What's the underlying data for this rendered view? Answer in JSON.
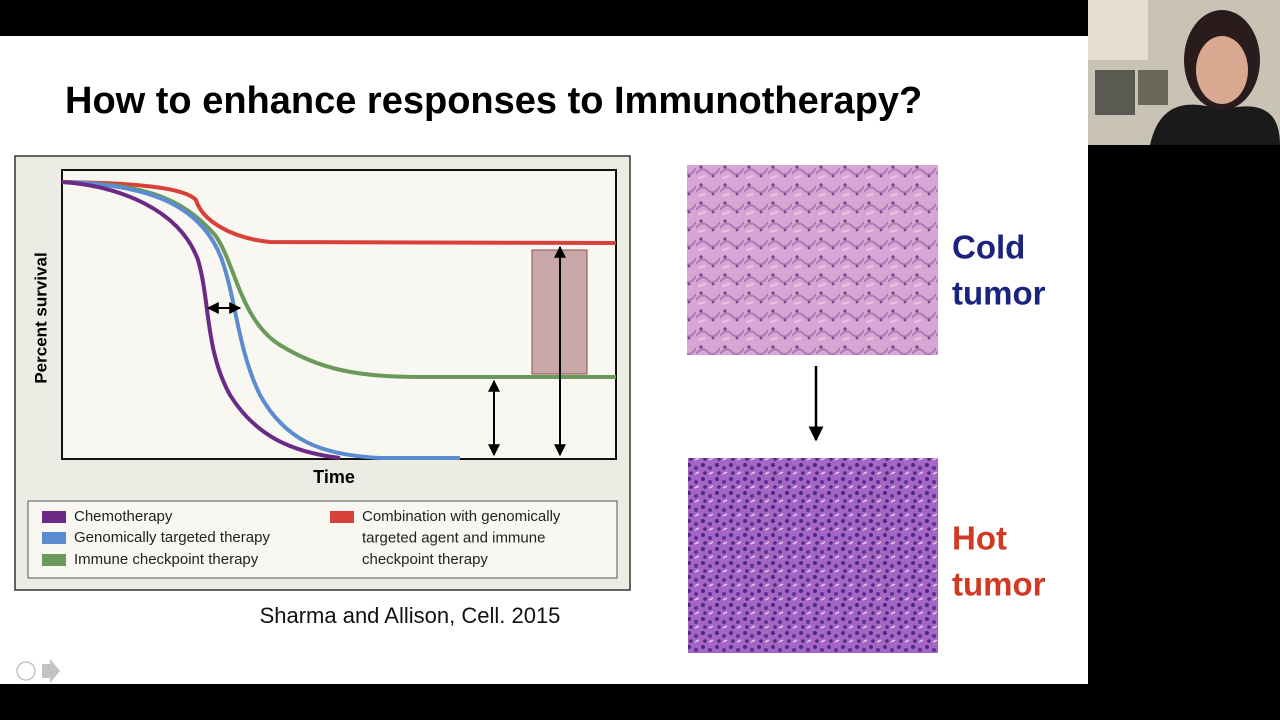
{
  "slide": {
    "title": "How to enhance responses to  Immunotherapy?",
    "figure": {
      "y_label": "Percent survival",
      "x_label": "Time",
      "legend": [
        {
          "lines": [
            "Chemotherapy"
          ],
          "color": "#6a2a86"
        },
        {
          "lines": [
            "Genomically targeted therapy"
          ],
          "color": "#5b8bd0"
        },
        {
          "lines": [
            "Immune checkpoint therapy"
          ],
          "color": "#6a9a5a"
        },
        {
          "lines": [
            "Combination with genomically",
            "targeted agent and immune",
            "checkpoint therapy"
          ],
          "color": "#d8413a"
        }
      ]
    },
    "citation": "Sharma and Allison, Cell. 2015",
    "tumors": [
      {
        "lines": [
          "Cold",
          "tumor"
        ],
        "color": "#1a237e"
      },
      {
        "lines": [
          "Hot",
          "tumor"
        ],
        "color": "#d03a24"
      }
    ]
  }
}
